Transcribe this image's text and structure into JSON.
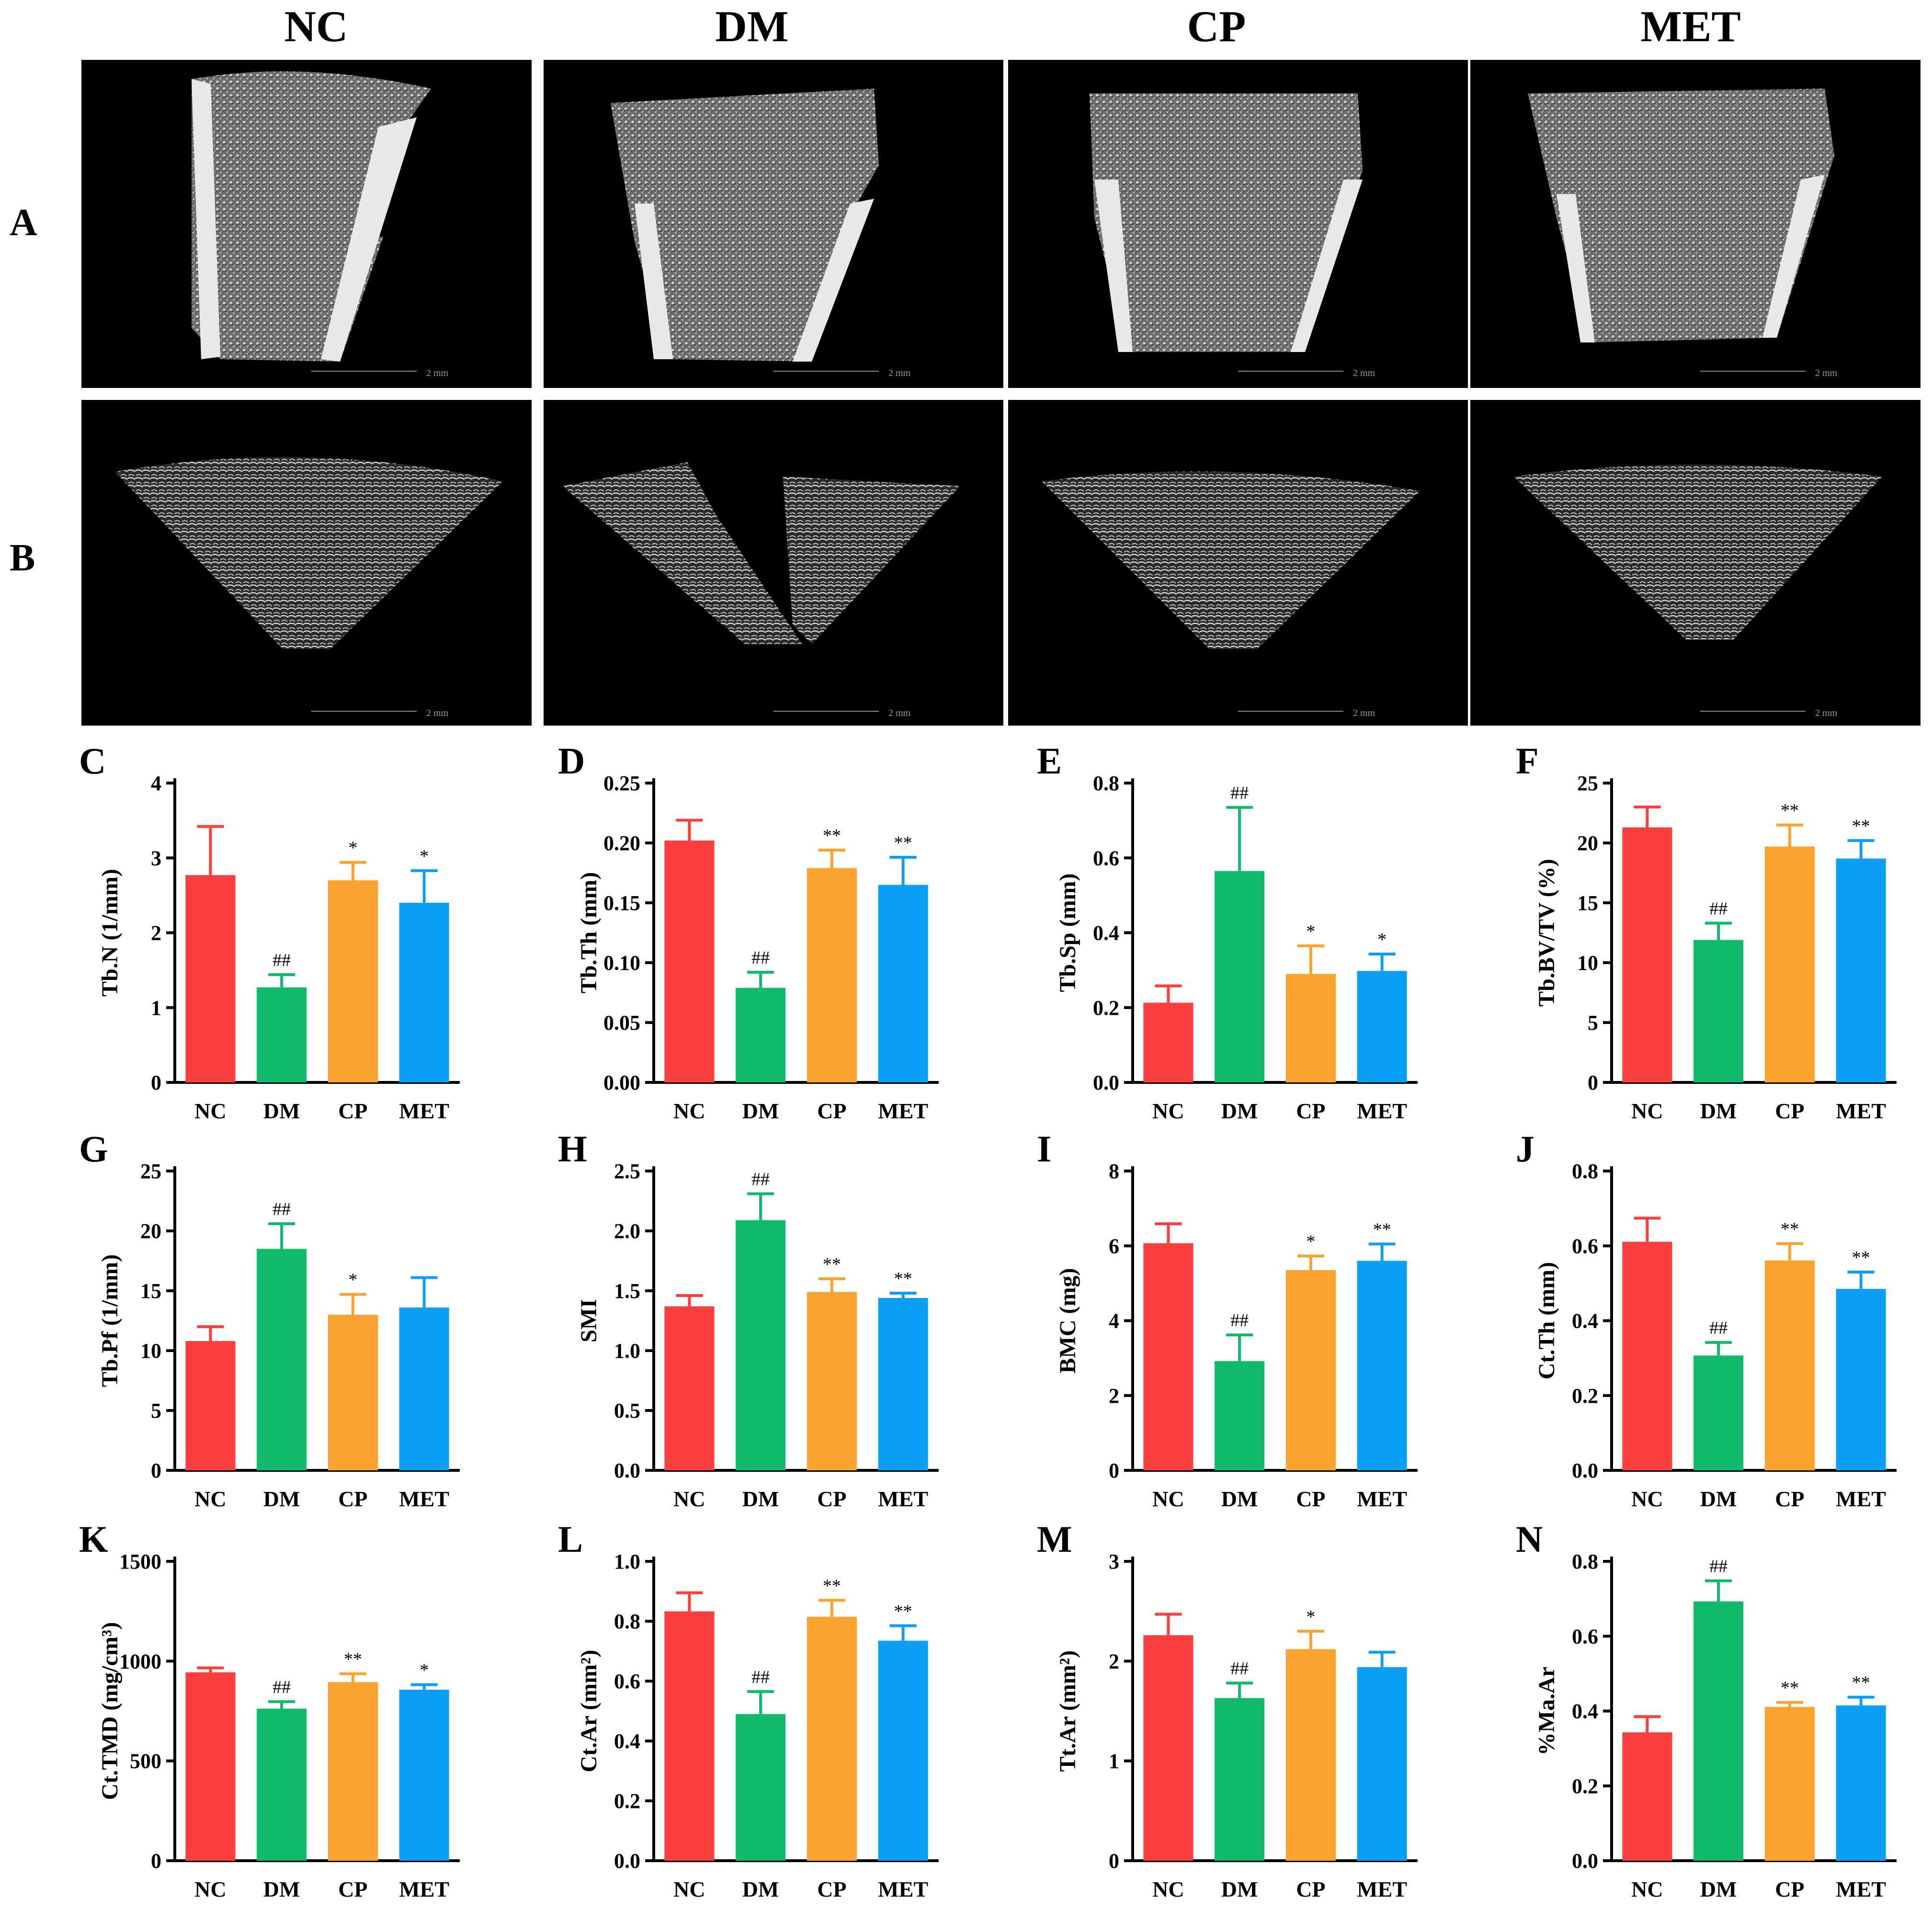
{
  "groups": [
    "NC",
    "DM",
    "CP",
    "MET"
  ],
  "colors": {
    "NC": "#fb3f3f",
    "DM": "#10b96b",
    "CP": "#fba331",
    "MET": "#0d9ff4"
  },
  "row_labels": {
    "A": "A",
    "B": "B"
  },
  "scale_bar_label": "2 mm",
  "image_panels": {
    "A": [
      "femur-3d-NC",
      "femur-3d-DM",
      "femur-3d-CP",
      "femur-3d-MET"
    ],
    "B": [
      "trabecular-3d-NC",
      "trabecular-3d-DM",
      "trabecular-3d-CP",
      "trabecular-3d-MET"
    ]
  },
  "chart_data": [
    {
      "panel": "C",
      "type": "bar",
      "ylabel": "Tb.N (1/mm)",
      "categories": [
        "NC",
        "DM",
        "CP",
        "MET"
      ],
      "values": [
        2.77,
        1.27,
        2.7,
        2.4
      ],
      "errors": [
        0.65,
        0.17,
        0.24,
        0.43
      ],
      "annotations": [
        "",
        "##",
        "*",
        "*"
      ],
      "ylim": [
        0,
        4
      ],
      "ticks": [
        "0",
        "1",
        "2",
        "3",
        "4"
      ]
    },
    {
      "panel": "D",
      "type": "bar",
      "ylabel": "Tb.Th (mm)",
      "categories": [
        "NC",
        "DM",
        "CP",
        "MET"
      ],
      "values": [
        0.202,
        0.079,
        0.179,
        0.165
      ],
      "errors": [
        0.017,
        0.013,
        0.015,
        0.023
      ],
      "annotations": [
        "",
        "##",
        "**",
        "**"
      ],
      "ylim": [
        0,
        0.25
      ],
      "ticks": [
        "0.00",
        "0.05",
        "0.10",
        "0.15",
        "0.20",
        "0.25"
      ]
    },
    {
      "panel": "E",
      "type": "bar",
      "ylabel": "Tb.Sp (mm)",
      "categories": [
        "NC",
        "DM",
        "CP",
        "MET"
      ],
      "values": [
        0.213,
        0.565,
        0.29,
        0.298
      ],
      "errors": [
        0.045,
        0.17,
        0.075,
        0.045
      ],
      "annotations": [
        "",
        "##",
        "*",
        "*"
      ],
      "ylim": [
        0,
        0.8
      ],
      "ticks": [
        "0.0",
        "0.2",
        "0.4",
        "0.6",
        "0.8"
      ]
    },
    {
      "panel": "F",
      "type": "bar",
      "ylabel": "Tb.BV/TV (%)",
      "categories": [
        "NC",
        "DM",
        "CP",
        "MET"
      ],
      "values": [
        21.3,
        11.9,
        19.7,
        18.7
      ],
      "errors": [
        1.7,
        1.4,
        1.8,
        1.5
      ],
      "annotations": [
        "",
        "##",
        "**",
        "**"
      ],
      "ylim": [
        0,
        25
      ],
      "ticks": [
        "0",
        "5",
        "10",
        "15",
        "20",
        "25"
      ]
    },
    {
      "panel": "G",
      "type": "bar",
      "ylabel": "Tb.Pf (1/mm)",
      "categories": [
        "NC",
        "DM",
        "CP",
        "MET"
      ],
      "values": [
        10.8,
        18.5,
        13.0,
        13.6
      ],
      "errors": [
        1.2,
        2.1,
        1.7,
        2.5
      ],
      "annotations": [
        "",
        "##",
        "*",
        ""
      ],
      "ylim": [
        0,
        25
      ],
      "ticks": [
        "0",
        "5",
        "10",
        "15",
        "20",
        "25"
      ]
    },
    {
      "panel": "H",
      "type": "bar",
      "ylabel": "SMI",
      "categories": [
        "NC",
        "DM",
        "CP",
        "MET"
      ],
      "values": [
        1.37,
        2.09,
        1.49,
        1.44
      ],
      "errors": [
        0.09,
        0.22,
        0.11,
        0.04
      ],
      "annotations": [
        "",
        "##",
        "**",
        "**"
      ],
      "ylim": [
        0,
        2.5
      ],
      "ticks": [
        "0.0",
        "0.5",
        "1.0",
        "1.5",
        "2.0",
        "2.5"
      ]
    },
    {
      "panel": "I",
      "type": "bar",
      "ylabel": "BMC (mg)",
      "categories": [
        "NC",
        "DM",
        "CP",
        "MET"
      ],
      "values": [
        6.07,
        2.92,
        5.35,
        5.6
      ],
      "errors": [
        0.52,
        0.7,
        0.38,
        0.45
      ],
      "annotations": [
        "",
        "##",
        "*",
        "**"
      ],
      "ylim": [
        0,
        8
      ],
      "ticks": [
        "0",
        "2",
        "4",
        "6",
        "8"
      ]
    },
    {
      "panel": "J",
      "type": "bar",
      "ylabel": "Ct.Th (mm)",
      "categories": [
        "NC",
        "DM",
        "CP",
        "MET"
      ],
      "values": [
        0.611,
        0.307,
        0.561,
        0.485
      ],
      "errors": [
        0.063,
        0.035,
        0.045,
        0.045
      ],
      "annotations": [
        "",
        "##",
        "**",
        "**"
      ],
      "ylim": [
        0,
        0.8
      ],
      "ticks": [
        "0.0",
        "0.2",
        "0.4",
        "0.6",
        "0.8"
      ]
    },
    {
      "panel": "K",
      "type": "bar",
      "ylabel": "Ct.TMD (mg/cm³)",
      "categories": [
        "NC",
        "DM",
        "CP",
        "MET"
      ],
      "values": [
        944,
        762,
        895,
        857
      ],
      "errors": [
        22,
        35,
        42,
        25
      ],
      "annotations": [
        "",
        "##",
        "**",
        "*"
      ],
      "ylim": [
        0,
        1500
      ],
      "ticks": [
        "0",
        "500",
        "1000",
        "1500"
      ]
    },
    {
      "panel": "L",
      "type": "bar",
      "ylabel": "Ct.Ar (mm²)",
      "categories": [
        "NC",
        "DM",
        "CP",
        "MET"
      ],
      "values": [
        0.833,
        0.49,
        0.815,
        0.735
      ],
      "errors": [
        0.062,
        0.075,
        0.055,
        0.05
      ],
      "annotations": [
        "",
        "##",
        "**",
        "**"
      ],
      "ylim": [
        0,
        1.0
      ],
      "ticks": [
        "0.0",
        "0.2",
        "0.4",
        "0.6",
        "0.8",
        "1.0"
      ]
    },
    {
      "panel": "M",
      "type": "bar",
      "ylabel": "Tt.Ar (mm²)",
      "categories": [
        "NC",
        "DM",
        "CP",
        "MET"
      ],
      "values": [
        2.26,
        1.63,
        2.12,
        1.94
      ],
      "errors": [
        0.21,
        0.15,
        0.18,
        0.15
      ],
      "annotations": [
        "",
        "##",
        "*",
        ""
      ],
      "ylim": [
        0,
        3
      ],
      "ticks": [
        "0",
        "1",
        "2",
        "3"
      ]
    },
    {
      "panel": "N",
      "type": "bar",
      "ylabel": "%Ma.Ar",
      "categories": [
        "NC",
        "DM",
        "CP",
        "MET"
      ],
      "values": [
        0.343,
        0.693,
        0.411,
        0.415
      ],
      "errors": [
        0.042,
        0.055,
        0.012,
        0.022
      ],
      "annotations": [
        "",
        "##",
        "**",
        "**"
      ],
      "ylim": [
        0,
        0.8
      ],
      "ticks": [
        "0.0",
        "0.2",
        "0.4",
        "0.6",
        "0.8"
      ]
    }
  ]
}
